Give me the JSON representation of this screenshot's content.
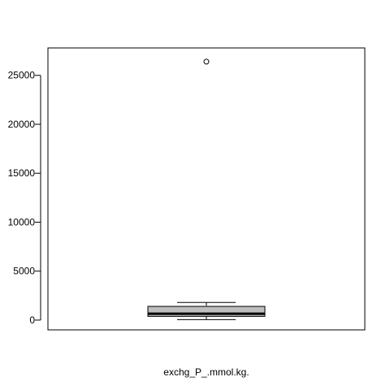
{
  "chart_data": {
    "type": "boxplot",
    "title": "",
    "xlabel": "exchg_P_.mmol.kg.",
    "ylabel": "",
    "ylim": [
      -1000,
      27800
    ],
    "y_ticks": [
      0,
      5000,
      10000,
      15000,
      20000,
      25000
    ],
    "y_tick_labels": [
      "0",
      "5000",
      "10000",
      "15000",
      "20000",
      "25000"
    ],
    "grid": false,
    "series": [
      {
        "whisker_low": 50,
        "q1": 380,
        "median": 650,
        "q3": 1400,
        "whisker_high": 1800,
        "outliers": [
          26400
        ]
      }
    ],
    "colors": {
      "box_fill": "#bebebe",
      "stroke": "#000000"
    }
  }
}
